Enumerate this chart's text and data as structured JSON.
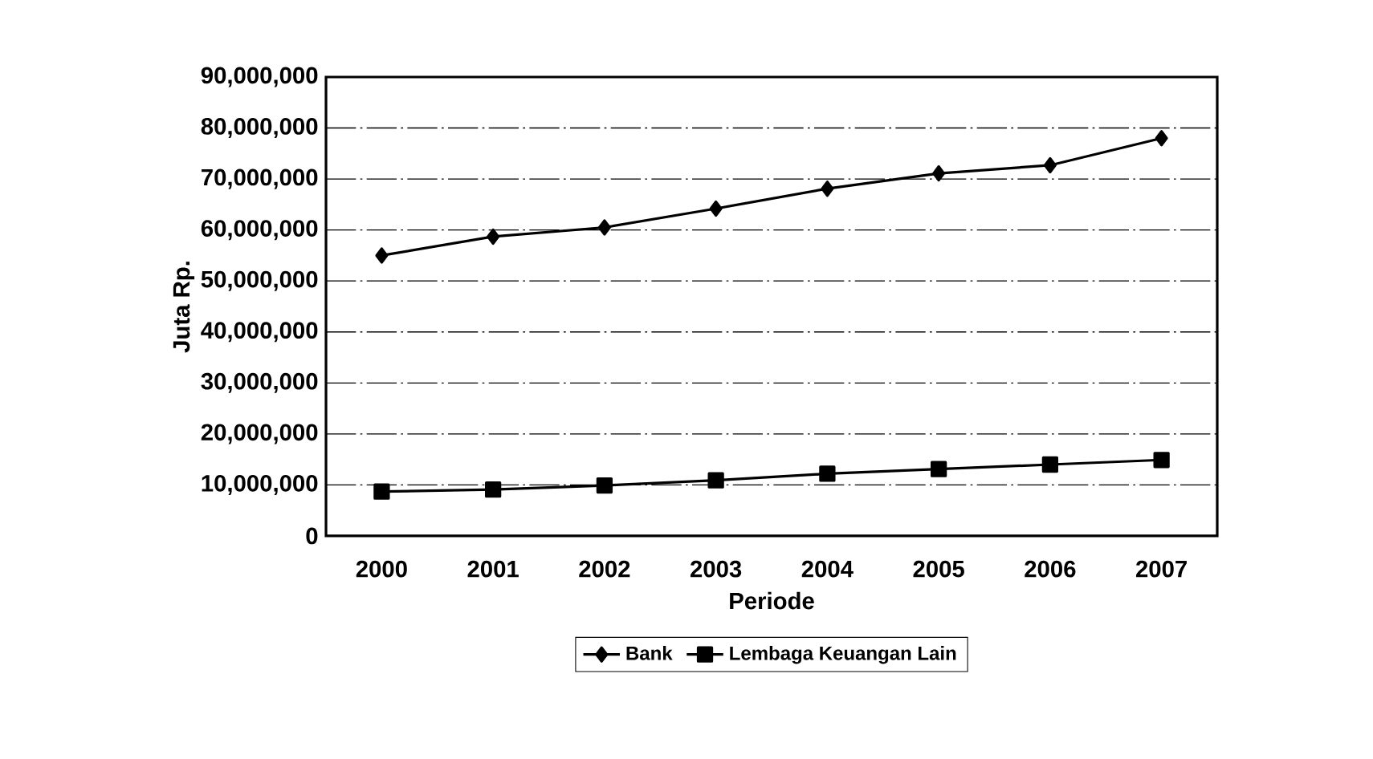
{
  "chart_data": {
    "type": "line",
    "xlabel": "Periode",
    "ylabel": "Juta Rp.",
    "categories": [
      "2000",
      "2001",
      "2002",
      "2003",
      "2004",
      "2005",
      "2006",
      "2007"
    ],
    "series": [
      {
        "name": "Bank",
        "color": "#000000",
        "marker": "diamond",
        "values": [
          55000000,
          58700000,
          60500000,
          64200000,
          68100000,
          71100000,
          72700000,
          78000000
        ]
      },
      {
        "name": "Lembaga Keuangan Lain",
        "color": "#000000",
        "marker": "square",
        "values": [
          8700000,
          9100000,
          9900000,
          10900000,
          12200000,
          13100000,
          14000000,
          14900000
        ]
      }
    ],
    "ylim": [
      0,
      90000000
    ],
    "yticks": [
      0,
      {
        "value": 10000000,
        "label": "10,000,000"
      },
      {
        "value": 20000000,
        "label": "20,000,000"
      },
      {
        "value": 30000000,
        "label": "30,000,000"
      },
      {
        "value": 40000000,
        "label": "40,000,000"
      },
      {
        "value": 50000000,
        "label": "50,000,000"
      },
      {
        "value": 60000000,
        "label": "60,000,000"
      },
      {
        "value": 70000000,
        "label": "70,000,000"
      },
      {
        "value": 80000000,
        "label": "80,000,000"
      },
      {
        "value": 90000000,
        "label": "90,000,000"
      }
    ],
    "grid": "y",
    "legend": "bottom",
    "line_style": "solid"
  }
}
